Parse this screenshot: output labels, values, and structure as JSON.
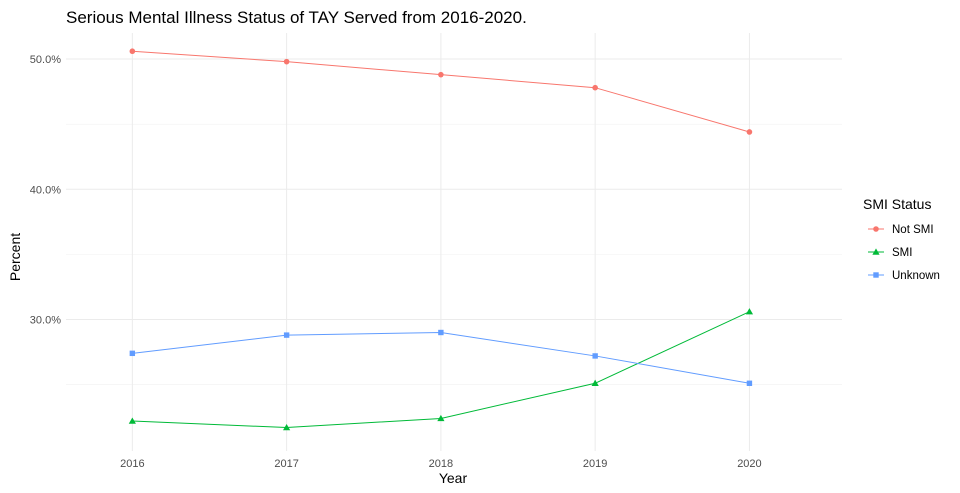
{
  "chart_data": {
    "type": "line",
    "title": "Serious Mental Illness Status of TAY Served from 2016-2020.",
    "xlabel": "Year",
    "ylabel": "Percent",
    "x": [
      2016,
      2017,
      2018,
      2019,
      2020
    ],
    "x_tick_labels": [
      "2016",
      "2017",
      "2018",
      "2019",
      "2020"
    ],
    "xlim": [
      2015.57,
      2020.6
    ],
    "ylim": [
      19.9,
      52.0
    ],
    "y_ticks": [
      30,
      40,
      50
    ],
    "y_tick_labels": [
      "30.0%",
      "40.0%",
      "50.0%"
    ],
    "grid": true,
    "legend": {
      "title": "SMI Status",
      "position": "right"
    },
    "series": [
      {
        "name": "Not SMI",
        "color": "#F8766D",
        "marker": "circle",
        "values": [
          50.6,
          49.8,
          48.8,
          47.8,
          44.4
        ]
      },
      {
        "name": "SMI",
        "color": "#00BA38",
        "marker": "triangle",
        "values": [
          22.2,
          21.7,
          22.4,
          25.1,
          30.6
        ]
      },
      {
        "name": "Unknown",
        "color": "#619CFF",
        "marker": "square",
        "values": [
          27.4,
          28.8,
          29.0,
          27.2,
          25.1
        ]
      }
    ]
  }
}
